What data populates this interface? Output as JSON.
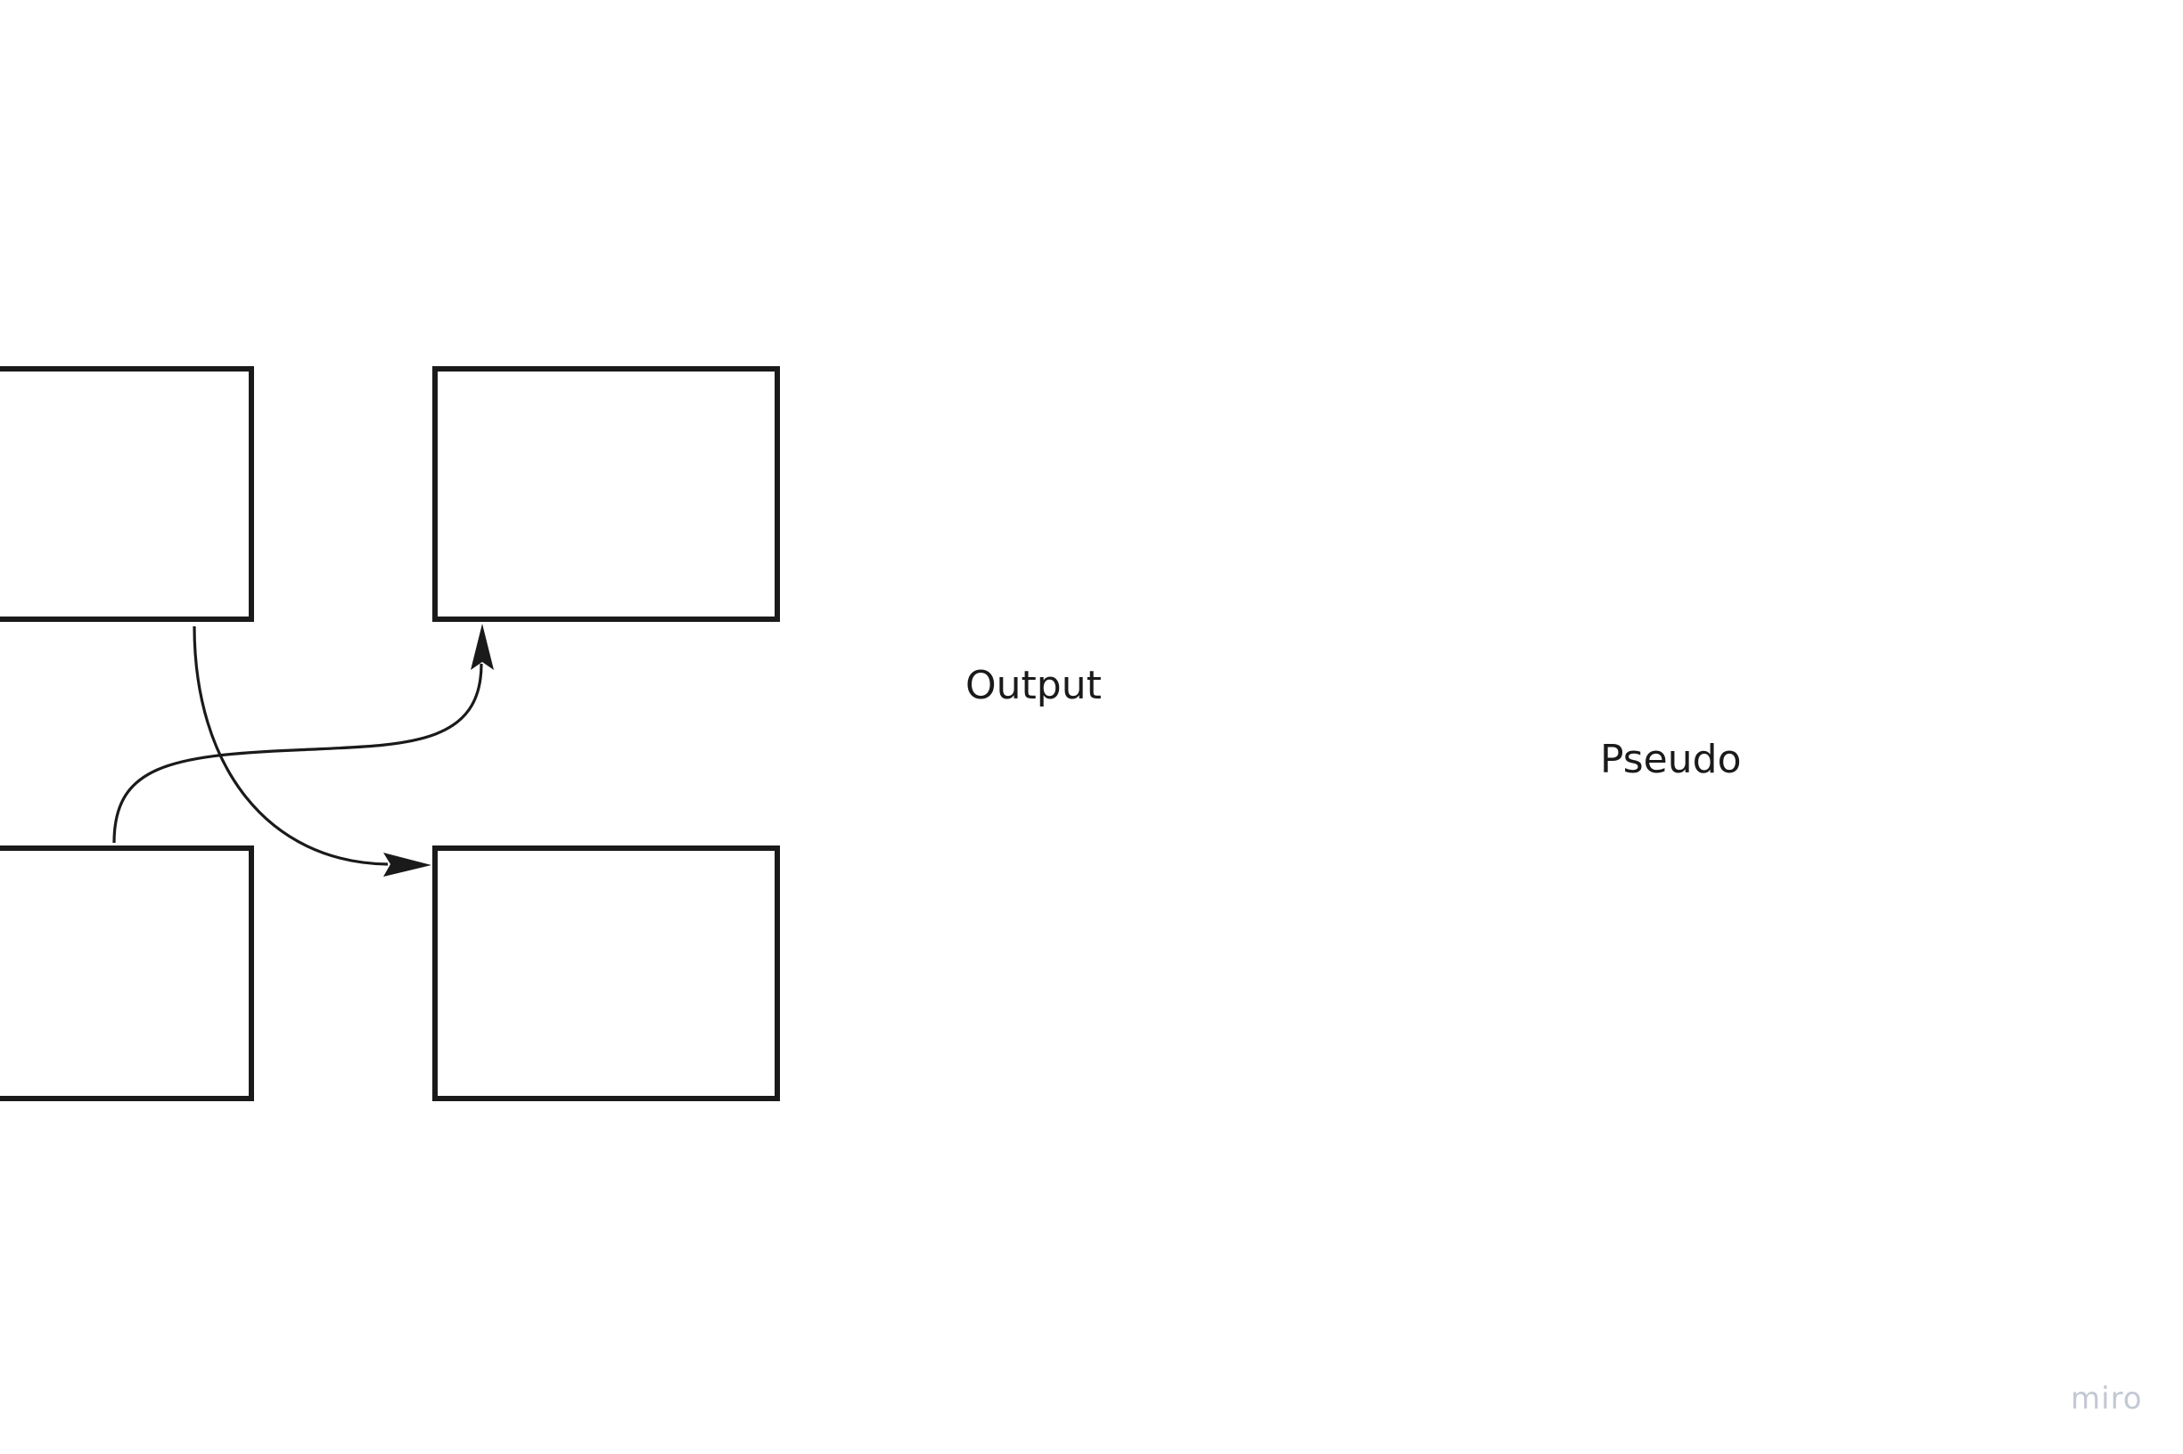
{
  "canvas": {
    "background": "#ffffff",
    "stroke_color": "#1a1a1a",
    "watermark_color": "#c3c8d4"
  },
  "diagram": {
    "nodes": [
      {
        "id": "top-left",
        "label": ""
      },
      {
        "id": "top-right",
        "label": ""
      },
      {
        "id": "bottom-left",
        "label": ""
      },
      {
        "id": "bottom-right",
        "label": ""
      }
    ],
    "edges": [
      {
        "from": "top-left",
        "to": "bottom-right"
      },
      {
        "from": "bottom-left",
        "to": "top-right"
      }
    ]
  },
  "labels": {
    "output": "Output",
    "pseudo": "Pseudo"
  },
  "watermark": {
    "text": "miro"
  }
}
